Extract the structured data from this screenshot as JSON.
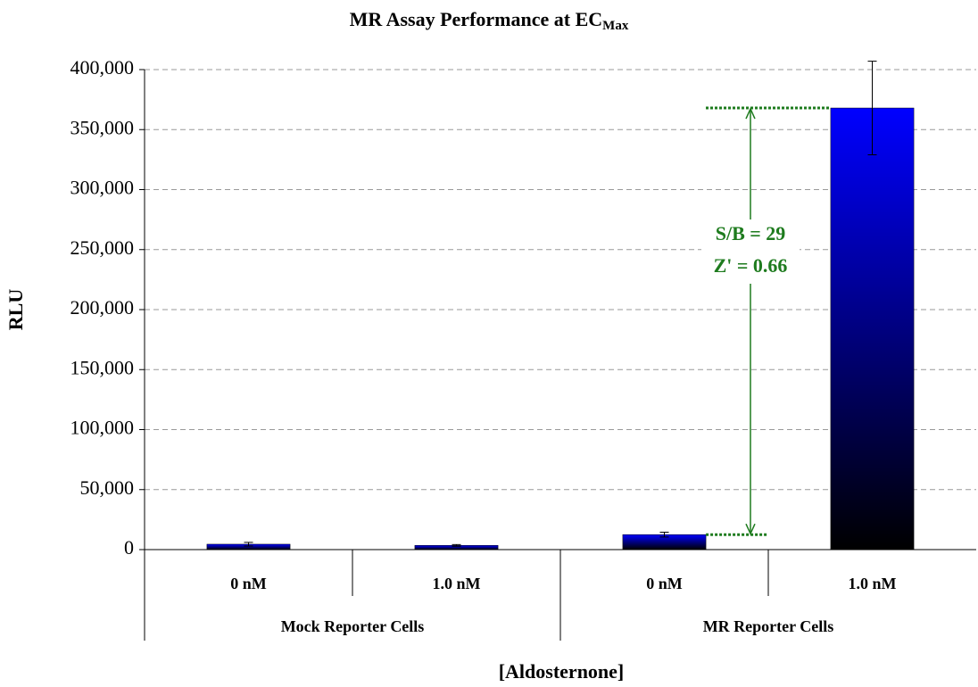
{
  "chart_data": {
    "type": "bar",
    "title": "MR Assay Performance at EC",
    "title_subscript": "Max",
    "y_label": "RLU",
    "x_label": "[Aldosternone]",
    "categories": [
      "0 nM",
      "1.0 nM",
      "0 nM",
      "1.0 nM"
    ],
    "groups": [
      "Mock Reporter Cells",
      "MR Reporter Cells"
    ],
    "values": [
      4500,
      3500,
      12500,
      368000
    ],
    "errors": [
      1500,
      700,
      2000,
      39000
    ],
    "color": "#0000ff",
    "gradient_to": "#000000",
    "ylim": [
      0,
      400000
    ],
    "yticks": [
      0,
      {
        "value": 50000,
        "label": "50,000"
      },
      {
        "value": 100000,
        "label": "100,000"
      },
      {
        "value": 150000,
        "label": "150,000"
      },
      {
        "value": 200000,
        "label": "200,000"
      },
      {
        "value": 250000,
        "label": "250,000"
      },
      {
        "value": 300000,
        "label": "300,000"
      },
      {
        "value": 350000,
        "label": "350,000"
      },
      {
        "value": 400000,
        "label": "400,000"
      }
    ],
    "grid": true,
    "annotations": [
      "S/B = 29",
      "Z' = 0.66"
    ],
    "annotation_color": "#1e7b1e"
  }
}
